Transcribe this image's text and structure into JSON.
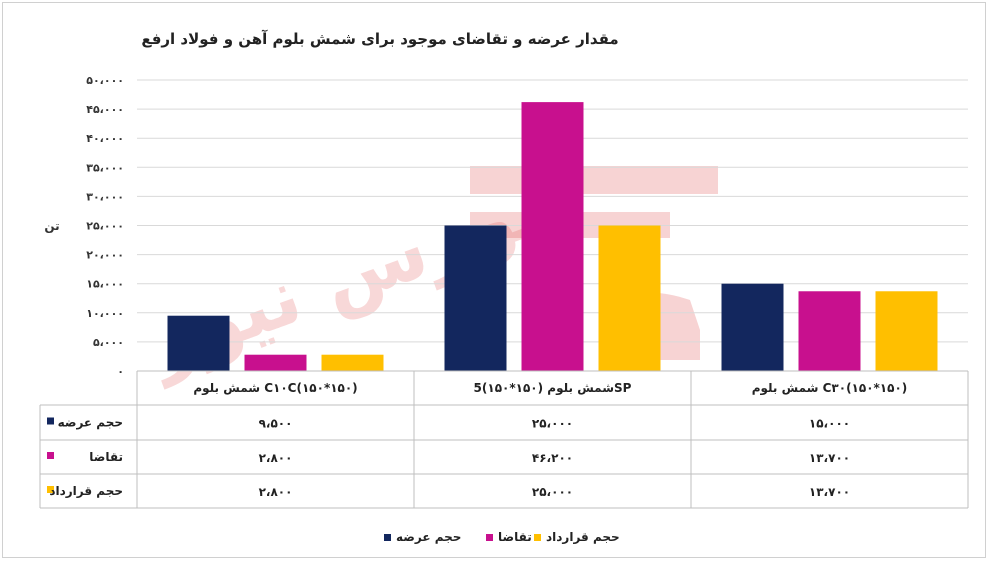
{
  "chart_data": {
    "type": "bar",
    "title": "مقدار عرضه و تقاضای موجود برای شمش بلوم آهن و فولاد ارفع",
    "ylabel": "تن",
    "ylim": [
      0,
      50000
    ],
    "yticks": [
      "۵۰،۰۰۰",
      "۴۵،۰۰۰",
      "۴۰،۰۰۰",
      "۳۵،۰۰۰",
      "۳۰،۰۰۰",
      "۲۵،۰۰۰",
      "۲۰،۰۰۰",
      "۱۵،۰۰۰",
      "۱۰،۰۰۰",
      "۵،۰۰۰",
      "۰"
    ],
    "yticks_values": [
      50000,
      45000,
      40000,
      35000,
      30000,
      25000,
      20000,
      15000,
      10000,
      5000,
      0
    ],
    "categories": [
      "C۱۰C(۱۵۰*۱۵۰) شمش بلوم",
      "SPشمش بلوم (۱۵۰*۱۵۰)5",
      "C۳۰(۱۵۰*۱۵۰) شمش بلوم"
    ],
    "series": [
      {
        "name": "حجم عرضه",
        "color": "#13275e",
        "values": [
          9500,
          25000,
          15000
        ],
        "labels": [
          "۹،۵۰۰",
          "۲۵،۰۰۰",
          "۱۵،۰۰۰"
        ]
      },
      {
        "name": "تقاضا",
        "color": "#c8108e",
        "values": [
          2800,
          46200,
          13700
        ],
        "labels": [
          "۲،۸۰۰",
          "۴۶،۲۰۰",
          "۱۳،۷۰۰"
        ]
      },
      {
        "name": "حجم قرارداد",
        "color": "#ffbf00",
        "values": [
          2800,
          25000,
          13700
        ],
        "labels": [
          "۲،۸۰۰",
          "۲۵،۰۰۰",
          "۱۳،۷۰۰"
        ]
      }
    ],
    "grid": true,
    "legend": "bottom",
    "data_table": true
  },
  "watermark": {
    "text": "بورس نیوز",
    "color": "#e05050"
  }
}
